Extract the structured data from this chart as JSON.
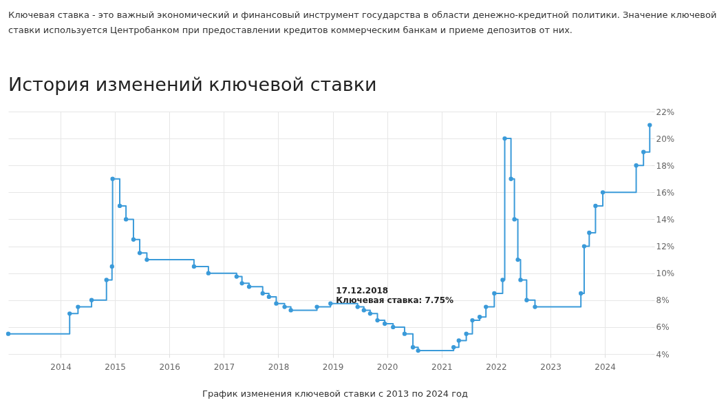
{
  "chart_data": {
    "type": "step",
    "title": "История изменений ключевой ставки",
    "annotations": [
      "Ключевая ставка - это важный экономический и финансовый инструмент государства в области денежно-кредитной политики. Значение ключевой\nставки используется Центробанком при предоставлении кредитов коммерческим банкам и приеме депозитов от них.",
      {
        "text": "17.12.2018\nКлючевая ставка: 7.75%",
        "x": "2018-12-17",
        "y": 7.75
      },
      "График изменения ключевой ставки с 2013 по 2024 год"
    ],
    "x": [
      "2013-01-15",
      "2014-03-03",
      "2014-04-28",
      "2014-07-28",
      "2014-11-05",
      "2014-12-12",
      "2014-12-16",
      "2015-02-02",
      "2015-03-16",
      "2015-05-05",
      "2015-06-16",
      "2015-08-03",
      "2016-06-14",
      "2016-09-19",
      "2017-03-27",
      "2017-05-02",
      "2017-06-19",
      "2017-09-18",
      "2017-10-30",
      "2017-12-18",
      "2018-02-12",
      "2018-03-26",
      "2018-09-17",
      "2018-12-17",
      "2019-06-17",
      "2019-07-29",
      "2019-09-09",
      "2019-10-28",
      "2019-12-16",
      "2020-02-10",
      "2020-04-27",
      "2020-06-22",
      "2020-07-27",
      "2021-03-22",
      "2021-04-26",
      "2021-06-15",
      "2021-07-26",
      "2021-09-13",
      "2021-10-25",
      "2021-12-20",
      "2022-02-14",
      "2022-02-28",
      "2022-04-11",
      "2022-05-04",
      "2022-05-27",
      "2022-06-14",
      "2022-07-25",
      "2022-09-19",
      "2023-07-24",
      "2023-08-15",
      "2023-09-18",
      "2023-10-30",
      "2023-12-18",
      "2024-07-29",
      "2024-09-16",
      "2024-10-28"
    ],
    "series": [
      {
        "color": "#3a9ad9",
        "values": [
          5.5,
          7.0,
          7.5,
          8.0,
          9.5,
          10.5,
          17.0,
          15.0,
          14.0,
          12.5,
          11.5,
          11.0,
          10.5,
          10.0,
          9.75,
          9.25,
          9.0,
          8.5,
          8.25,
          7.75,
          7.5,
          7.25,
          7.5,
          7.75,
          7.5,
          7.25,
          7.0,
          6.5,
          6.25,
          6.0,
          5.5,
          4.5,
          4.25,
          4.5,
          5.0,
          5.5,
          6.5,
          6.75,
          7.5,
          8.5,
          9.5,
          20.0,
          17.0,
          14.0,
          11.0,
          9.5,
          8.0,
          7.5,
          8.5,
          12.0,
          13.0,
          15.0,
          16.0,
          18.0,
          19.0,
          21.0
        ]
      }
    ],
    "xlim": [
      "2013-01-15",
      "2024-11-05"
    ],
    "xticks": [
      "2014",
      "2015",
      "2016",
      "2017",
      "2018",
      "2019",
      "2020",
      "2021",
      "2022",
      "2023",
      "2024"
    ],
    "ylim": [
      4,
      22
    ],
    "yticks": [
      {
        "value": 4,
        "label": "4%"
      },
      {
        "value": 6,
        "label": "6%"
      },
      {
        "value": 8,
        "label": "8%"
      },
      {
        "value": 10,
        "label": "10%"
      },
      {
        "value": 12,
        "label": "12%"
      },
      {
        "value": 14,
        "label": "14%"
      },
      {
        "value": 16,
        "label": "16%"
      },
      {
        "value": 18,
        "label": "18%"
      },
      {
        "value": 20,
        "label": "20%"
      },
      {
        "value": 22,
        "label": "22%"
      }
    ],
    "grid": true,
    "marker": "circle",
    "line_style": "solid"
  }
}
